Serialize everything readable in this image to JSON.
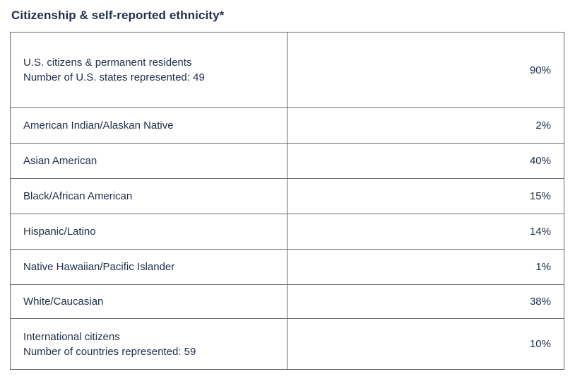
{
  "page": {
    "title": "Citizenship & self-reported ethnicity*"
  },
  "colors": {
    "text": "#22304a",
    "border": "#6b6b6b",
    "background": "#ffffff"
  },
  "table": {
    "rows": [
      {
        "label": "U.S. citizens & permanent residents",
        "sublabel": "Number of U.S. states represented: 49",
        "value": "90%"
      },
      {
        "label": "American Indian/Alaskan Native",
        "value": "2%"
      },
      {
        "label": "Asian American",
        "value": "40%"
      },
      {
        "label": "Black/African American",
        "value": "15%"
      },
      {
        "label": "Hispanic/Latino",
        "value": "14%"
      },
      {
        "label": "Native Hawaiian/Pacific Islander",
        "value": "1%"
      },
      {
        "label": "White/Caucasian",
        "value": "38%"
      },
      {
        "label": "International citizens",
        "sublabel": "Number of countries represented: 59",
        "value": "10%"
      }
    ]
  },
  "chart_data": {
    "type": "table",
    "title": "Citizenship & self-reported ethnicity*",
    "categories": [
      "U.S. citizens & permanent residents",
      "American Indian/Alaskan Native",
      "Asian American",
      "Black/African American",
      "Hispanic/Latino",
      "Native Hawaiian/Pacific Islander",
      "White/Caucasian",
      "International citizens"
    ],
    "values": [
      90,
      2,
      40,
      15,
      14,
      1,
      38,
      10
    ],
    "unit": "%",
    "annotations": [
      "Number of U.S. states represented: 49",
      "Number of countries represented: 59"
    ],
    "legend_position": "none",
    "grid": false
  }
}
